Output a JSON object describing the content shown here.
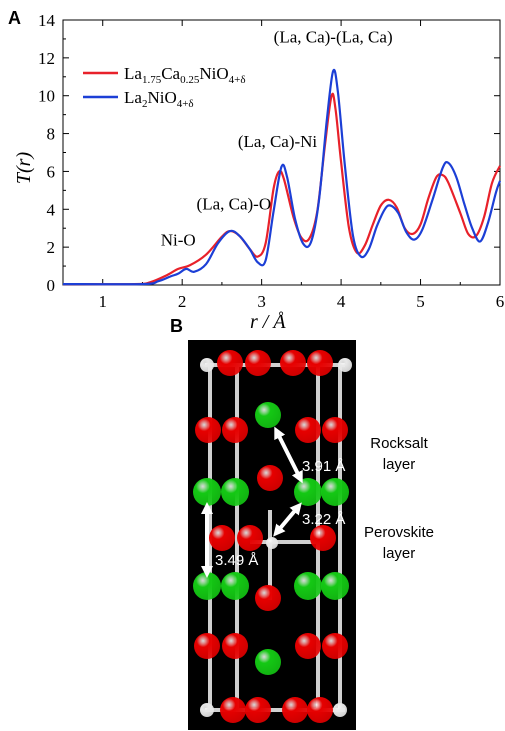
{
  "chart_data": {
    "type": "line",
    "panel_label": "A",
    "xlabel": "r / Å",
    "ylabel": "T(r)",
    "xlim": [
      0.5,
      6.0
    ],
    "ylim": [
      0,
      14
    ],
    "x_ticks": [
      1,
      2,
      3,
      4,
      5,
      6
    ],
    "y_ticks": [
      0,
      2,
      4,
      6,
      8,
      10,
      12,
      14
    ],
    "legend_position": "top-left",
    "annotations": [
      {
        "text": "Ni-O",
        "x": 1.95,
        "y": 2.1
      },
      {
        "text": "(La, Ca)-O",
        "x": 2.65,
        "y": 4.0
      },
      {
        "text": "(La, Ca)-Ni",
        "x": 3.2,
        "y": 7.3
      },
      {
        "text": "(La, Ca)-(La, Ca)",
        "x": 3.9,
        "y": 12.8
      }
    ],
    "series": [
      {
        "name": "La1.75Ca0.25NiO4+δ",
        "color": "#e8212a",
        "points": [
          [
            0.5,
            0.05
          ],
          [
            1.4,
            0.05
          ],
          [
            1.6,
            0.15
          ],
          [
            1.8,
            0.5
          ],
          [
            1.95,
            0.85
          ],
          [
            2.1,
            1.05
          ],
          [
            2.3,
            1.6
          ],
          [
            2.5,
            2.55
          ],
          [
            2.6,
            2.85
          ],
          [
            2.72,
            2.6
          ],
          [
            2.85,
            1.9
          ],
          [
            2.95,
            1.5
          ],
          [
            3.05,
            2.2
          ],
          [
            3.15,
            5.1
          ],
          [
            3.22,
            6.0
          ],
          [
            3.28,
            5.6
          ],
          [
            3.4,
            3.6
          ],
          [
            3.5,
            2.5
          ],
          [
            3.6,
            2.45
          ],
          [
            3.7,
            3.9
          ],
          [
            3.8,
            7.5
          ],
          [
            3.88,
            10.0
          ],
          [
            3.93,
            9.3
          ],
          [
            4.0,
            6.5
          ],
          [
            4.1,
            3.0
          ],
          [
            4.2,
            1.7
          ],
          [
            4.3,
            2.1
          ],
          [
            4.4,
            3.2
          ],
          [
            4.5,
            4.2
          ],
          [
            4.6,
            4.5
          ],
          [
            4.7,
            4.1
          ],
          [
            4.8,
            3.0
          ],
          [
            4.9,
            2.7
          ],
          [
            5.0,
            3.2
          ],
          [
            5.1,
            4.6
          ],
          [
            5.2,
            5.7
          ],
          [
            5.28,
            5.8
          ],
          [
            5.35,
            5.4
          ],
          [
            5.5,
            3.8
          ],
          [
            5.6,
            2.7
          ],
          [
            5.7,
            2.6
          ],
          [
            5.8,
            3.6
          ],
          [
            5.9,
            5.4
          ],
          [
            6.0,
            6.3
          ]
        ]
      },
      {
        "name": "La2NiO4+δ",
        "color": "#1c3fd6",
        "points": [
          [
            0.5,
            0.05
          ],
          [
            1.5,
            0.05
          ],
          [
            1.7,
            0.2
          ],
          [
            1.85,
            0.45
          ],
          [
            1.95,
            0.6
          ],
          [
            2.05,
            0.85
          ],
          [
            2.15,
            0.7
          ],
          [
            2.3,
            1.1
          ],
          [
            2.45,
            2.2
          ],
          [
            2.6,
            2.85
          ],
          [
            2.72,
            2.6
          ],
          [
            2.85,
            1.9
          ],
          [
            2.95,
            1.2
          ],
          [
            3.05,
            1.3
          ],
          [
            3.15,
            3.9
          ],
          [
            3.25,
            6.25
          ],
          [
            3.32,
            5.7
          ],
          [
            3.42,
            3.5
          ],
          [
            3.52,
            2.2
          ],
          [
            3.62,
            2.25
          ],
          [
            3.72,
            4.4
          ],
          [
            3.82,
            8.7
          ],
          [
            3.9,
            11.3
          ],
          [
            3.96,
            10.2
          ],
          [
            4.05,
            6.2
          ],
          [
            4.15,
            2.6
          ],
          [
            4.25,
            1.5
          ],
          [
            4.35,
            1.9
          ],
          [
            4.45,
            3.1
          ],
          [
            4.55,
            4.0
          ],
          [
            4.62,
            4.2
          ],
          [
            4.72,
            3.8
          ],
          [
            4.82,
            2.8
          ],
          [
            4.92,
            2.4
          ],
          [
            5.02,
            2.9
          ],
          [
            5.15,
            4.5
          ],
          [
            5.28,
            6.2
          ],
          [
            5.35,
            6.45
          ],
          [
            5.45,
            5.7
          ],
          [
            5.55,
            4.3
          ],
          [
            5.65,
            3.0
          ],
          [
            5.75,
            2.3
          ],
          [
            5.85,
            3.3
          ],
          [
            5.95,
            4.9
          ],
          [
            6.0,
            5.5
          ]
        ]
      }
    ]
  },
  "legend": {
    "series1_main": "La",
    "series1_sub1": "1.75",
    "series1_mid": "Ca",
    "series1_sub2": "0.25",
    "series1_end": "NiO",
    "series1_sub3": "4+δ",
    "series2_main": "La",
    "series2_sub1": "2",
    "series2_end": "NiO",
    "series2_sub2": "4+δ"
  },
  "panelB": {
    "label": "B",
    "dist1": "3.91 Å",
    "dist2": "3.22 Å",
    "dist3": "3.49 Å",
    "layer1_line1": "Rocksalt",
    "layer1_line2": "layer",
    "layer2_line1": "Perovskite",
    "layer2_line2": "layer",
    "colors": {
      "red": "#e60000",
      "green": "#14c814",
      "white": "#e8e8e8"
    }
  }
}
